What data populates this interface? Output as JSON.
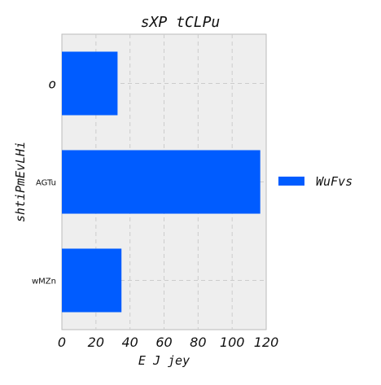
{
  "chart_data": {
    "type": "bar",
    "orientation": "horizontal",
    "title": "sXP tCLPu",
    "xlabel": "E J jey",
    "ylabel": "shtiPmEvLHi",
    "categories": [
      "o",
      "AGTu",
      "wMZn"
    ],
    "series": [
      {
        "name": "WuFvs",
        "values": [
          32.7,
          116.5,
          35.0
        ]
      }
    ],
    "xlim": [
      0,
      120
    ],
    "xticks": [
      "0",
      "20",
      "40",
      "60",
      "80",
      "100",
      "120"
    ],
    "grid": true,
    "legend_position": "right"
  },
  "colors": {
    "bar": "#005cff",
    "plot_background": "#eeeeee",
    "grid": "#cccccc"
  }
}
